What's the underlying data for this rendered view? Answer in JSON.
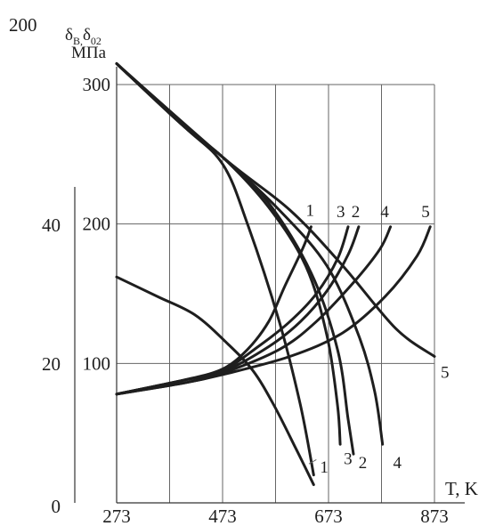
{
  "chart_data": {
    "type": "line",
    "xlabel": "T, K",
    "ylabel_right_parts": [
      "δ",
      "В,",
      "δ",
      "02"
    ],
    "ylabel_unit": "МПа",
    "x_ticks": [
      "273",
      "473",
      "673",
      "873"
    ],
    "xlim": [
      273,
      873
    ],
    "y_left_ticks": [
      "0",
      "20",
      "40",
      "200"
    ],
    "y_right_ticks": [
      "100",
      "200",
      "300"
    ],
    "ylim_right": [
      0,
      300
    ],
    "grid": true,
    "series_strength": [
      {
        "name": "1",
        "points": [
          [
            273,
            315
          ],
          [
            400,
            270
          ],
          [
            473,
            243
          ],
          [
            520,
            200
          ],
          [
            580,
            130
          ],
          [
            620,
            70
          ],
          [
            645,
            20
          ]
        ]
      },
      {
        "name": "2",
        "points": [
          [
            273,
            315
          ],
          [
            400,
            270
          ],
          [
            473,
            248
          ],
          [
            560,
            215
          ],
          [
            640,
            165
          ],
          [
            690,
            110
          ],
          [
            710,
            60
          ],
          [
            720,
            35
          ]
        ]
      },
      {
        "name": "3",
        "points": [
          [
            273,
            315
          ],
          [
            400,
            270
          ],
          [
            473,
            248
          ],
          [
            560,
            212
          ],
          [
            630,
            170
          ],
          [
            670,
            120
          ],
          [
            690,
            70
          ],
          [
            695,
            42
          ]
        ]
      },
      {
        "name": "4",
        "points": [
          [
            273,
            315
          ],
          [
            400,
            270
          ],
          [
            473,
            248
          ],
          [
            580,
            210
          ],
          [
            670,
            170
          ],
          [
            730,
            120
          ],
          [
            760,
            80
          ],
          [
            775,
            42
          ]
        ]
      },
      {
        "name": "5",
        "points": [
          [
            273,
            315
          ],
          [
            473,
            248
          ],
          [
            600,
            210
          ],
          [
            700,
            170
          ],
          [
            800,
            125
          ],
          [
            873,
            105
          ]
        ]
      },
      {
        "name": "",
        "points": [
          [
            273,
            162
          ],
          [
            350,
            148
          ],
          [
            420,
            135
          ],
          [
            480,
            115
          ],
          [
            530,
            95
          ],
          [
            570,
            70
          ],
          [
            610,
            40
          ],
          [
            645,
            13
          ]
        ]
      }
    ],
    "series_ductility": [
      {
        "name": "1",
        "points": [
          [
            273,
            78
          ],
          [
            400,
            88
          ],
          [
            473,
            96
          ],
          [
            520,
            110
          ],
          [
            560,
            130
          ],
          [
            590,
            155
          ],
          [
            625,
            183
          ],
          [
            640,
            198
          ]
        ]
      },
      {
        "name": "3",
        "points": [
          [
            273,
            78
          ],
          [
            400,
            88
          ],
          [
            473,
            95
          ],
          [
            540,
            112
          ],
          [
            600,
            130
          ],
          [
            650,
            150
          ],
          [
            690,
            175
          ],
          [
            710,
            198
          ]
        ]
      },
      {
        "name": "2",
        "points": [
          [
            273,
            78
          ],
          [
            400,
            88
          ],
          [
            473,
            94
          ],
          [
            560,
            112
          ],
          [
            620,
            130
          ],
          [
            670,
            152
          ],
          [
            710,
            178
          ],
          [
            730,
            198
          ]
        ]
      },
      {
        "name": "4",
        "points": [
          [
            273,
            78
          ],
          [
            400,
            86
          ],
          [
            473,
            93
          ],
          [
            580,
            110
          ],
          [
            650,
            130
          ],
          [
            720,
            158
          ],
          [
            770,
            182
          ],
          [
            790,
            198
          ]
        ]
      },
      {
        "name": "5",
        "points": [
          [
            273,
            78
          ],
          [
            400,
            86
          ],
          [
            473,
            92
          ],
          [
            600,
            105
          ],
          [
            700,
            122
          ],
          [
            780,
            148
          ],
          [
            840,
            177
          ],
          [
            865,
            198
          ]
        ]
      }
    ],
    "curve_labels": [
      {
        "text": "1",
        "group": "strength",
        "at": [
          645,
          32
        ]
      },
      {
        "text": "3",
        "group": "strength",
        "at": [
          690,
          38
        ]
      },
      {
        "text": "2",
        "group": "strength",
        "at": [
          718,
          35
        ]
      },
      {
        "text": "4",
        "group": "strength",
        "at": [
          783,
          35
        ]
      },
      {
        "text": "5",
        "group": "strength",
        "at": [
          873,
          100
        ]
      },
      {
        "text": "1",
        "group": "ductility",
        "at": [
          647,
          206
        ]
      },
      {
        "text": "3",
        "group": "ductility",
        "at": [
          705,
          205
        ]
      },
      {
        "text": "2",
        "group": "ductility",
        "at": [
          733,
          205
        ]
      },
      {
        "text": "4",
        "group": "ductility",
        "at": [
          788,
          205
        ]
      },
      {
        "text": "5",
        "group": "ductility",
        "at": [
          865,
          205
        ]
      }
    ]
  }
}
